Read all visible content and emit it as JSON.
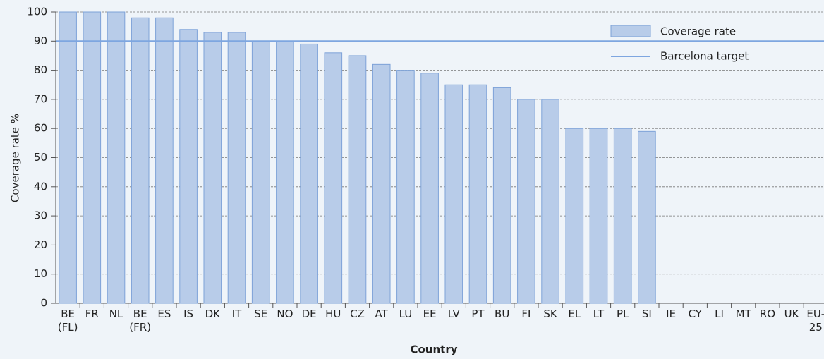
{
  "chart_data": {
    "type": "bar",
    "x_label": "Country",
    "y_label": "Coverage rate %",
    "categories": [
      "BE (FL)",
      "FR",
      "NL",
      "BE (FR)",
      "ES",
      "IS",
      "DK",
      "IT",
      "SE",
      "NO",
      "DE",
      "HU",
      "CZ",
      "AT",
      "LU",
      "EE",
      "LV",
      "PT",
      "BU",
      "FI",
      "SK",
      "EL",
      "LT",
      "PL",
      "SI",
      "IE",
      "CY",
      "LI",
      "MT",
      "RO",
      "UK",
      "EU-25"
    ],
    "series": [
      {
        "name": "Coverage rate",
        "color": "#b8cce9",
        "stroke": "#7da2d8",
        "values": [
          100,
          100,
          100,
          98,
          98,
          94,
          93,
          93,
          90,
          90,
          89,
          86,
          85,
          82,
          80,
          79,
          75,
          75,
          74,
          70,
          70,
          60,
          60,
          60,
          59,
          null,
          null,
          null,
          null,
          null,
          null,
          null
        ]
      }
    ],
    "reference_line": {
      "name": "Barcelona target",
      "value": 90,
      "color": "#7ea6e0"
    },
    "ylim": [
      0,
      100
    ],
    "yticks": [
      0,
      10,
      20,
      30,
      40,
      50,
      60,
      70,
      80,
      90,
      100
    ],
    "grid": true,
    "legend": "top-right"
  }
}
